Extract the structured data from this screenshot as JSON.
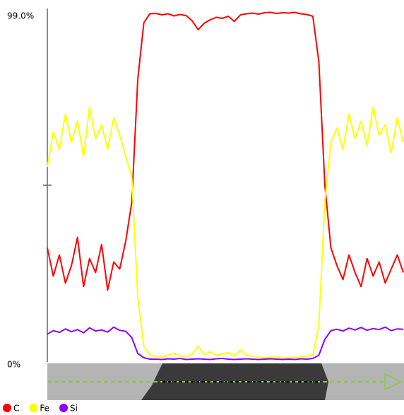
{
  "chart_data": {
    "type": "line",
    "ylim": [
      0,
      99
    ],
    "yticks": [
      {
        "value": 0,
        "label": "0%"
      },
      {
        "value": 99,
        "label": "99.0%"
      }
    ],
    "series": [
      {
        "name": "C",
        "color": "#ff0000",
        "values": [
          32,
          24,
          30,
          22,
          27,
          35,
          21,
          29,
          25,
          33,
          20,
          28,
          26,
          34,
          45,
          80,
          96,
          98.5,
          98.6,
          98.2,
          98.5,
          97.9,
          98.3,
          98.0,
          96.5,
          94.0,
          95.8,
          96.8,
          97.5,
          97.2,
          97.8,
          96.3,
          98.2,
          98.5,
          98.7,
          98.4,
          98.8,
          98.9,
          98.6,
          98.8,
          98.7,
          98.9,
          98.5,
          98.3,
          97.8,
          85,
          50,
          32,
          27,
          23,
          30,
          25,
          21,
          29,
          24,
          28,
          22,
          26,
          30,
          25
        ]
      },
      {
        "name": "Fe",
        "color": "#ffff00",
        "values": [
          55,
          65,
          60,
          70,
          62,
          68,
          58,
          72,
          63,
          67,
          60,
          69,
          64,
          58,
          52,
          18,
          4,
          1.5,
          1.2,
          1.0,
          1.5,
          2.0,
          1.3,
          1.1,
          1.8,
          4.0,
          1.6,
          2.5,
          1.4,
          1.9,
          2.2,
          1.3,
          3.0,
          1.5,
          1.2,
          1.0,
          0.8,
          0.9,
          1.0,
          0.7,
          0.8,
          0.9,
          1.0,
          1.2,
          1.5,
          10,
          45,
          62,
          66,
          60,
          70,
          63,
          68,
          61,
          72,
          64,
          67,
          59,
          69,
          62
        ]
      },
      {
        "name": "Si",
        "color": "#8b00ff",
        "values": [
          7.5,
          8.5,
          8.0,
          9.0,
          8.2,
          8.8,
          7.9,
          9.3,
          8.4,
          8.7,
          8.1,
          9.5,
          8.6,
          8.3,
          6.5,
          2,
          0.8,
          0.4,
          0.4,
          0.3,
          0.5,
          0.4,
          0.6,
          0.3,
          0.4,
          0.5,
          0.4,
          0.3,
          0.5,
          0.6,
          0.4,
          0.3,
          0.4,
          0.5,
          0.4,
          0.3,
          0.4,
          0.5,
          0.4,
          0.3,
          0.4,
          0.3,
          0.5,
          0.4,
          0.6,
          1.5,
          6,
          8.5,
          8.9,
          8.4,
          9.2,
          8.7,
          9.4,
          8.6,
          9.1,
          8.8,
          9.5,
          8.5,
          9.0,
          8.9
        ]
      }
    ]
  }
}
